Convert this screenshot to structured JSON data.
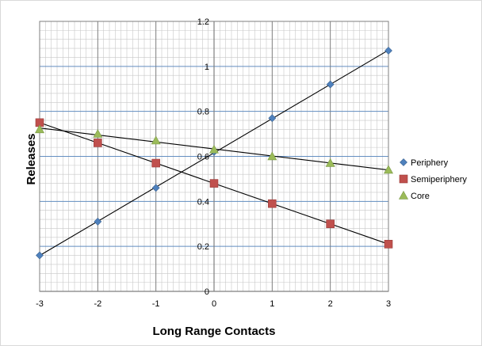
{
  "chart_data": {
    "type": "scatter",
    "title": "",
    "xlabel": "Long Range Contacts",
    "ylabel": "Releases",
    "xlim": [
      -3,
      3
    ],
    "ylim": [
      0,
      1.2
    ],
    "x_ticks": [
      -3,
      -2,
      -1,
      0,
      1,
      2,
      3
    ],
    "y_ticks": [
      0,
      0.2,
      0.4,
      0.6,
      0.8,
      1,
      1.2
    ],
    "minor_grid": true,
    "grid": true,
    "legend_position": "right",
    "trendlines": "linear",
    "series": [
      {
        "name": "Periphery",
        "marker": "diamond",
        "color": "#4f81bd",
        "x": [
          -3,
          -2,
          -1,
          0,
          1,
          2,
          3
        ],
        "y": [
          0.16,
          0.31,
          0.46,
          0.62,
          0.77,
          0.92,
          1.07
        ]
      },
      {
        "name": "Semiperiphery",
        "marker": "square",
        "color": "#c0504d",
        "x": [
          -3,
          -2,
          -1,
          0,
          1,
          2,
          3
        ],
        "y": [
          0.75,
          0.66,
          0.57,
          0.48,
          0.39,
          0.3,
          0.21
        ]
      },
      {
        "name": "Core",
        "marker": "triangle",
        "color": "#9bbb59",
        "x": [
          -3,
          -2,
          -1,
          0,
          1,
          2,
          3
        ],
        "y": [
          0.72,
          0.7,
          0.67,
          0.63,
          0.6,
          0.57,
          0.54
        ]
      }
    ]
  }
}
